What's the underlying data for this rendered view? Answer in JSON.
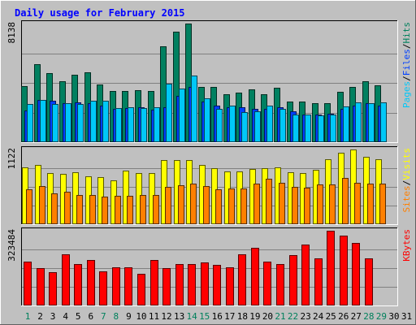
{
  "chart_data": {
    "type": "bar",
    "title": "Daily usage for February 2015",
    "days": [
      "1",
      "2",
      "3",
      "4",
      "5",
      "6",
      "7",
      "8",
      "9",
      "10",
      "11",
      "12",
      "13",
      "14",
      "15",
      "16",
      "17",
      "18",
      "19",
      "20",
      "21",
      "22",
      "23",
      "24",
      "25",
      "26",
      "27",
      "28",
      "29",
      "30",
      "31"
    ],
    "weekend_days": [
      1,
      7,
      8,
      14,
      15,
      21,
      22,
      28,
      29
    ],
    "panels": [
      {
        "ymax_label": "8138",
        "ymax": 8138,
        "legend": [
          {
            "text": "Pages",
            "color": "#00c8f8"
          },
          {
            "text": "/",
            "color": "#000000"
          },
          {
            "text": "Files",
            "color": "#0040ff"
          },
          {
            "text": "/",
            "color": "#000000"
          },
          {
            "text": "Hits",
            "color": "#00805c"
          }
        ],
        "series": [
          {
            "name": "Hits",
            "color": "#008060",
            "values": [
              3870,
              5350,
              4730,
              4190,
              4620,
              4780,
              3950,
              3500,
              3500,
              3550,
              3500,
              6560,
              7560,
              8138,
              3780,
              3780,
              3300,
              3380,
              3630,
              3290,
              3730,
              2780,
              2780,
              2680,
              2700,
              3430,
              3780,
              4180,
              3880
            ]
          },
          {
            "name": "Files",
            "color": "#0040ff",
            "values": [
              2200,
              2900,
              2850,
              2700,
              2750,
              2700,
              2500,
              2300,
              2350,
              2400,
              2250,
              2400,
              3200,
              3800,
              2800,
              2500,
              2400,
              2400,
              2300,
              2300,
              2400,
              2100,
              1900,
              1900,
              1950,
              2300,
              2500,
              2650,
              2500
            ]
          },
          {
            "name": "Pages",
            "color": "#00c8f8",
            "values": [
              2630,
              2900,
              2630,
              2680,
              2630,
              2850,
              2850,
              2330,
              2400,
              2330,
              2400,
              3990,
              3700,
              4560,
              3000,
              2270,
              2490,
              2060,
              2130,
              2490,
              2270,
              1920,
              1920,
              1850,
              1920,
              2480,
              2750,
              2700,
              2750
            ]
          }
        ]
      },
      {
        "ymax_label": "1122",
        "ymax": 1122,
        "legend": [
          {
            "text": "Sites",
            "color": "#ff8000"
          },
          {
            "text": "/",
            "color": "#000000"
          },
          {
            "text": "Visits",
            "color": "#ffff00"
          }
        ],
        "series": [
          {
            "name": "Visits",
            "color": "#ffff00",
            "values": [
              848,
              896,
              774,
              761,
              783,
              725,
              710,
              660,
              802,
              768,
              768,
              963,
              963,
              963,
              888,
              836,
              794,
              794,
              831,
              847,
              848,
              785,
              774,
              815,
              974,
              1074,
              1122,
              1018,
              970
            ]
          },
          {
            "name": "Sites",
            "color": "#ff8000",
            "values": [
              528,
              575,
              462,
              488,
              433,
              433,
              415,
              428,
              428,
              433,
              433,
              562,
              580,
              615,
              568,
              530,
              540,
              540,
              613,
              680,
              620,
              565,
              543,
              598,
              599,
              693,
              627,
              610,
              610
            ]
          }
        ]
      },
      {
        "ymax_label": "323484",
        "ymax": 323484,
        "legend": [
          {
            "text": "KBytes",
            "color": "#ff0000"
          }
        ],
        "series": [
          {
            "name": "KBytes",
            "color": "#ff0000",
            "values": [
              190000,
              163000,
              145000,
              220000,
              180000,
              196000,
              147000,
              166000,
              166000,
              138000,
              196000,
              162000,
              178000,
              178000,
              187000,
              175000,
              164000,
              220000,
              249000,
              189000,
              178000,
              219000,
              265000,
              204000,
              323484,
              302000,
              271000,
              204000
            ]
          }
        ]
      }
    ]
  }
}
